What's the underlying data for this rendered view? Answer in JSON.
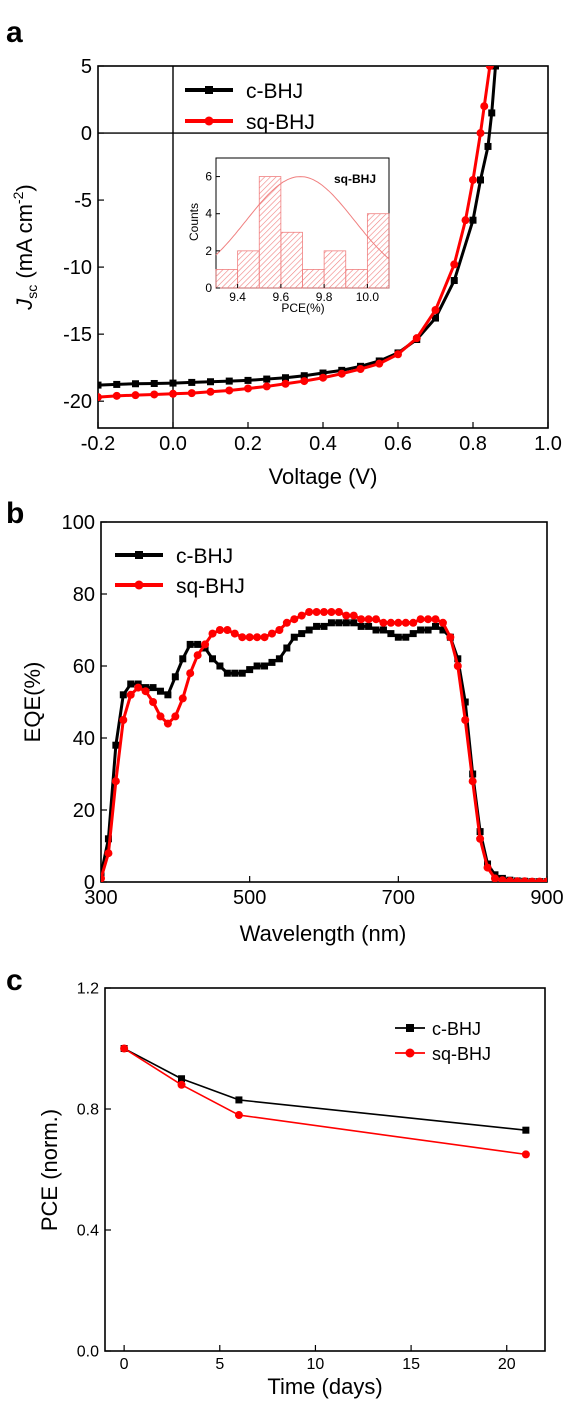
{
  "chart_data": [
    {
      "panel_label": "a",
      "type": "line",
      "xlabel": "Voltage (V)",
      "ylabel_main": "J",
      "ylabel_sub": "sc",
      "ylabel_rest": " (mA cm",
      "ylabel_sup": "-2",
      "ylabel_close": ")",
      "xlim": [
        -0.2,
        1.0
      ],
      "ylim": [
        -22,
        5
      ],
      "xticks": [
        "-0.2",
        "0.0",
        "0.2",
        "0.4",
        "0.6",
        "0.8",
        "1.0"
      ],
      "yticks": [
        "5",
        "0",
        "-5",
        "-10",
        "-15",
        "-20"
      ],
      "legend": "top-left",
      "series": [
        {
          "name": "c-BHJ",
          "color": "#000000",
          "marker": "square",
          "x": [
            -0.2,
            -0.15,
            -0.1,
            -0.05,
            0.0,
            0.05,
            0.1,
            0.15,
            0.2,
            0.25,
            0.3,
            0.35,
            0.4,
            0.45,
            0.5,
            0.55,
            0.6,
            0.65,
            0.7,
            0.75,
            0.8,
            0.82,
            0.84,
            0.85,
            0.86
          ],
          "y": [
            -18.8,
            -18.75,
            -18.7,
            -18.68,
            -18.65,
            -18.6,
            -18.55,
            -18.5,
            -18.45,
            -18.35,
            -18.25,
            -18.1,
            -17.9,
            -17.7,
            -17.4,
            -17.0,
            -16.4,
            -15.4,
            -13.8,
            -11.0,
            -6.5,
            -3.5,
            -1.0,
            1.5,
            5.0
          ]
        },
        {
          "name": "sq-BHJ",
          "color": "#ff0000",
          "marker": "circle",
          "x": [
            -0.2,
            -0.15,
            -0.1,
            -0.05,
            0.0,
            0.05,
            0.1,
            0.15,
            0.2,
            0.25,
            0.3,
            0.35,
            0.4,
            0.45,
            0.5,
            0.55,
            0.6,
            0.65,
            0.7,
            0.75,
            0.78,
            0.8,
            0.82,
            0.83,
            0.845
          ],
          "y": [
            -19.7,
            -19.6,
            -19.55,
            -19.5,
            -19.45,
            -19.4,
            -19.3,
            -19.2,
            -19.05,
            -18.9,
            -18.7,
            -18.5,
            -18.25,
            -17.95,
            -17.6,
            -17.2,
            -16.5,
            -15.3,
            -13.2,
            -9.8,
            -6.5,
            -3.5,
            0.0,
            2.0,
            5.0
          ]
        }
      ],
      "inset": {
        "type": "histogram",
        "title": "sq-BHJ",
        "xlabel": "PCE(%)",
        "ylabel": "Counts",
        "xlim": [
          9.3,
          10.1
        ],
        "ylim": [
          0,
          7
        ],
        "xticks": [
          "9.4",
          "9.6",
          "9.8",
          "10.0"
        ],
        "yticks": [
          "0",
          "2",
          "4",
          "6"
        ],
        "bin_edges": [
          9.3,
          9.4,
          9.5,
          9.6,
          9.7,
          9.8,
          9.9,
          10.0,
          10.1
        ],
        "counts": [
          1,
          2,
          6,
          3,
          1,
          2,
          1,
          4
        ],
        "fit": {
          "type": "gaussian",
          "mean": 9.69,
          "sigma": 0.25,
          "peak": 6
        },
        "color": "#f08080"
      }
    },
    {
      "panel_label": "b",
      "type": "line",
      "xlabel": "Wavelength (nm)",
      "ylabel": "EQE(%)",
      "xlim": [
        300,
        900
      ],
      "ylim": [
        0,
        100
      ],
      "xticks": [
        "300",
        "500",
        "700",
        "900"
      ],
      "yticks": [
        "0",
        "20",
        "40",
        "60",
        "80",
        "100"
      ],
      "legend": "top-left",
      "series": [
        {
          "name": "c-BHJ",
          "color": "#000000",
          "marker": "square",
          "x": [
            300,
            310,
            320,
            330,
            340,
            350,
            360,
            370,
            380,
            390,
            400,
            410,
            420,
            430,
            440,
            450,
            460,
            470,
            480,
            490,
            500,
            510,
            520,
            530,
            540,
            550,
            560,
            570,
            580,
            590,
            600,
            610,
            620,
            630,
            640,
            650,
            660,
            670,
            680,
            690,
            700,
            710,
            720,
            730,
            740,
            750,
            760,
            770,
            780,
            790,
            800,
            810,
            820,
            830,
            840,
            850,
            860,
            870,
            880,
            890,
            900
          ],
          "y": [
            2,
            12,
            38,
            52,
            55,
            55,
            54,
            54,
            53,
            52,
            57,
            62,
            66,
            66,
            65,
            62,
            60,
            58,
            58,
            58,
            59,
            60,
            60,
            61,
            62,
            65,
            68,
            69,
            70,
            71,
            71,
            72,
            72,
            72,
            72,
            71,
            71,
            70,
            70,
            69,
            68,
            68,
            69,
            70,
            70,
            71,
            70,
            68,
            62,
            50,
            30,
            14,
            5,
            2,
            1,
            0.5,
            0.3,
            0.2,
            0.1,
            0.1,
            0.1
          ]
        },
        {
          "name": "sq-BHJ",
          "color": "#ff0000",
          "marker": "circle",
          "x": [
            300,
            310,
            320,
            330,
            340,
            350,
            360,
            370,
            380,
            390,
            400,
            410,
            420,
            430,
            440,
            450,
            460,
            470,
            480,
            490,
            500,
            510,
            520,
            530,
            540,
            550,
            560,
            570,
            580,
            590,
            600,
            610,
            620,
            630,
            640,
            650,
            660,
            670,
            680,
            690,
            700,
            710,
            720,
            730,
            740,
            750,
            760,
            770,
            780,
            790,
            800,
            810,
            820,
            830,
            840,
            850,
            860,
            870,
            880,
            890,
            900
          ],
          "y": [
            1,
            8,
            28,
            45,
            52,
            54,
            53,
            50,
            46,
            44,
            46,
            51,
            58,
            63,
            66,
            69,
            70,
            70,
            69,
            68,
            68,
            68,
            68,
            69,
            70,
            72,
            73,
            74,
            75,
            75,
            75,
            75,
            75,
            74,
            74,
            73,
            73,
            73,
            72,
            72,
            72,
            72,
            72,
            73,
            73,
            73,
            72,
            68,
            60,
            45,
            28,
            12,
            4,
            1,
            0.5,
            0.3,
            0.2,
            0.2,
            0.1,
            0.1,
            0.1
          ]
        }
      ]
    },
    {
      "panel_label": "c",
      "type": "line",
      "xlabel": "Time (days)",
      "ylabel": "PCE (norm.)",
      "xlim": [
        -1,
        22
      ],
      "ylim": [
        0,
        1.2
      ],
      "xticks": [
        "0",
        "5",
        "10",
        "15",
        "20"
      ],
      "yticks": [
        "0.0",
        "0.4",
        "0.8",
        "1.2"
      ],
      "legend": "top-right",
      "series": [
        {
          "name": "c-BHJ",
          "color": "#000000",
          "marker": "square",
          "x": [
            0,
            3,
            6,
            21
          ],
          "y": [
            1.0,
            0.9,
            0.83,
            0.73
          ]
        },
        {
          "name": "sq-BHJ",
          "color": "#ff0000",
          "marker": "circle",
          "x": [
            0,
            3,
            6,
            21
          ],
          "y": [
            1.0,
            0.88,
            0.78,
            0.65
          ]
        }
      ]
    }
  ]
}
